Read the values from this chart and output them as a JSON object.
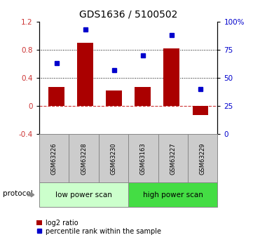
{
  "title": "GDS1636 / 5100502",
  "samples": [
    "GSM63226",
    "GSM63228",
    "GSM63230",
    "GSM63163",
    "GSM63227",
    "GSM63229"
  ],
  "log2_ratio": [
    0.27,
    0.9,
    0.22,
    0.27,
    0.82,
    -0.13
  ],
  "percentile_rank": [
    63,
    93,
    57,
    70,
    88,
    40
  ],
  "bar_color": "#aa0000",
  "dot_color": "#0000cc",
  "ylim_left": [
    -0.4,
    1.2
  ],
  "ylim_right": [
    0,
    100
  ],
  "yticks_left": [
    -0.4,
    0.0,
    0.4,
    0.8,
    1.2
  ],
  "yticks_right": [
    0,
    25,
    50,
    75,
    100
  ],
  "ytick_labels_right": [
    "0",
    "25",
    "50",
    "75",
    "100%"
  ],
  "hlines": [
    0.4,
    0.8
  ],
  "zero_line_color": "#cc3333",
  "hline_color": "#000000",
  "protocol_groups": [
    {
      "label": "low power scan",
      "indices": [
        0,
        1,
        2
      ],
      "color": "#ccffcc"
    },
    {
      "label": "high power scan",
      "indices": [
        3,
        4,
        5
      ],
      "color": "#44dd44"
    }
  ],
  "protocol_label": "protocol",
  "legend_bar_label": "log2 ratio",
  "legend_dot_label": "percentile rank within the sample",
  "bg_color": "#ffffff",
  "sample_box_color": "#cccccc",
  "sample_box_edge": "#888888",
  "bar_width": 0.55
}
